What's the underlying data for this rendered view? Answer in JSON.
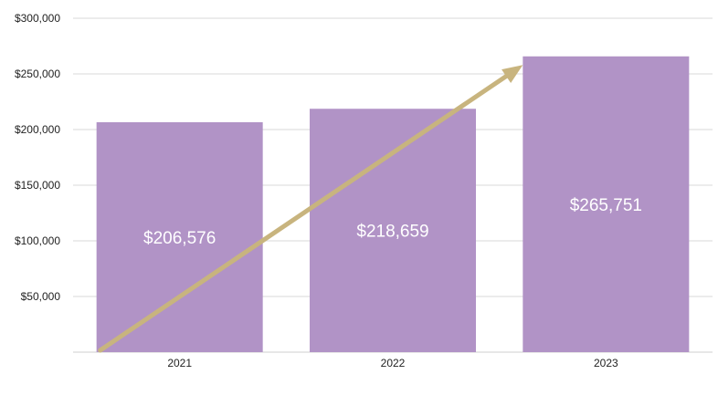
{
  "chart_data": {
    "type": "bar",
    "title": "",
    "xlabel": "",
    "ylabel": "",
    "categories": [
      "2021",
      "2022",
      "2023"
    ],
    "values": [
      206576,
      218659,
      265751
    ],
    "data_labels": [
      "$206,576",
      "$218,659",
      "$265,751"
    ],
    "ylim": [
      0,
      300000
    ],
    "yticks": [
      50000,
      100000,
      150000,
      200000,
      250000,
      300000
    ],
    "ytick_labels": [
      "$50,000",
      "$100,000",
      "$150,000",
      "$200,000",
      "$250,000",
      "$300,000"
    ],
    "grid": true,
    "legend": "none",
    "trend_arrow": {
      "from": 0,
      "to": 258000,
      "color": "#c8b47e"
    },
    "colors": {
      "bar": "#b193c6",
      "grid": "#d9d9d9",
      "axis": "#cfcfcf",
      "arrow": "#c8b47e"
    }
  }
}
